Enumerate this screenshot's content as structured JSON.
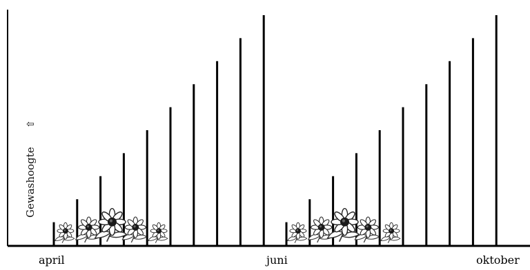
{
  "chart_data": {
    "type": "bar",
    "ylabel": "Gewashoogte",
    "ylabel_arrow": "⇧",
    "x_ticks": [
      "april",
      "juni",
      "oktober"
    ],
    "series": [
      {
        "values": [
          1,
          2,
          3,
          4,
          5,
          6,
          7,
          8,
          9,
          10
        ]
      },
      {
        "values": [
          1,
          2,
          3,
          4,
          5,
          6,
          7,
          8,
          9,
          10
        ]
      }
    ],
    "ylim": [
      0,
      10
    ],
    "grid": false,
    "flower_icons": [
      {
        "series": 0,
        "bar": 0,
        "icon": "daisy-icon"
      },
      {
        "series": 0,
        "bar": 1,
        "icon": "daisy-icon"
      },
      {
        "series": 0,
        "bar": 2,
        "icon": "daisy-icon"
      },
      {
        "series": 0,
        "bar": 3,
        "icon": "daisy-icon"
      },
      {
        "series": 0,
        "bar": 4,
        "icon": "daisy-icon"
      },
      {
        "series": 1,
        "bar": 0,
        "icon": "daisy-icon"
      },
      {
        "series": 1,
        "bar": 1,
        "icon": "daisy-icon"
      },
      {
        "series": 1,
        "bar": 2,
        "icon": "daisy-icon"
      },
      {
        "series": 1,
        "bar": 3,
        "icon": "daisy-icon"
      },
      {
        "series": 1,
        "bar": 4,
        "icon": "daisy-icon"
      }
    ]
  }
}
